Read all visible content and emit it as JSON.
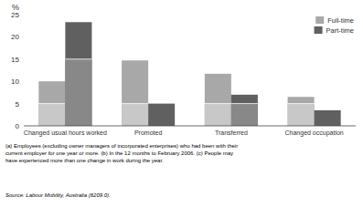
{
  "chart_data": {
    "type": "bar",
    "ylabel": "%",
    "categories": [
      "Changed usual hours worked",
      "Promoted",
      "Transferred",
      "Changed occupation"
    ],
    "series": [
      {
        "name": "Full-time",
        "color": "#a8a8a8",
        "values": [
          10.0,
          14.7,
          11.7,
          6.5
        ],
        "sub_values": [
          5.0,
          5.0,
          5.0,
          5.0
        ],
        "sub_color": "#c8c8c8"
      },
      {
        "name": "Part-time",
        "color": "#606060",
        "values": [
          23.3,
          5.0,
          7.0,
          3.5
        ],
        "sub_values": [
          15.0,
          0.0,
          5.0,
          0.0
        ],
        "sub_color": "#888888"
      }
    ],
    "ylim": [
      0,
      25
    ],
    "yticks": [
      0,
      5,
      10,
      15,
      20,
      25
    ],
    "grid": false,
    "legend": "upper right",
    "footnote": "(a) Employees (excluding owner managers of incorporated enterprises) who had been with their\ncurrent employer for one year or more.  (b) In the 12 months to February 2006.  (c) People may\nhave experienced more than one change in work during the year.",
    "source": "Source: Labour Mobility, Australia (6209.0)."
  }
}
